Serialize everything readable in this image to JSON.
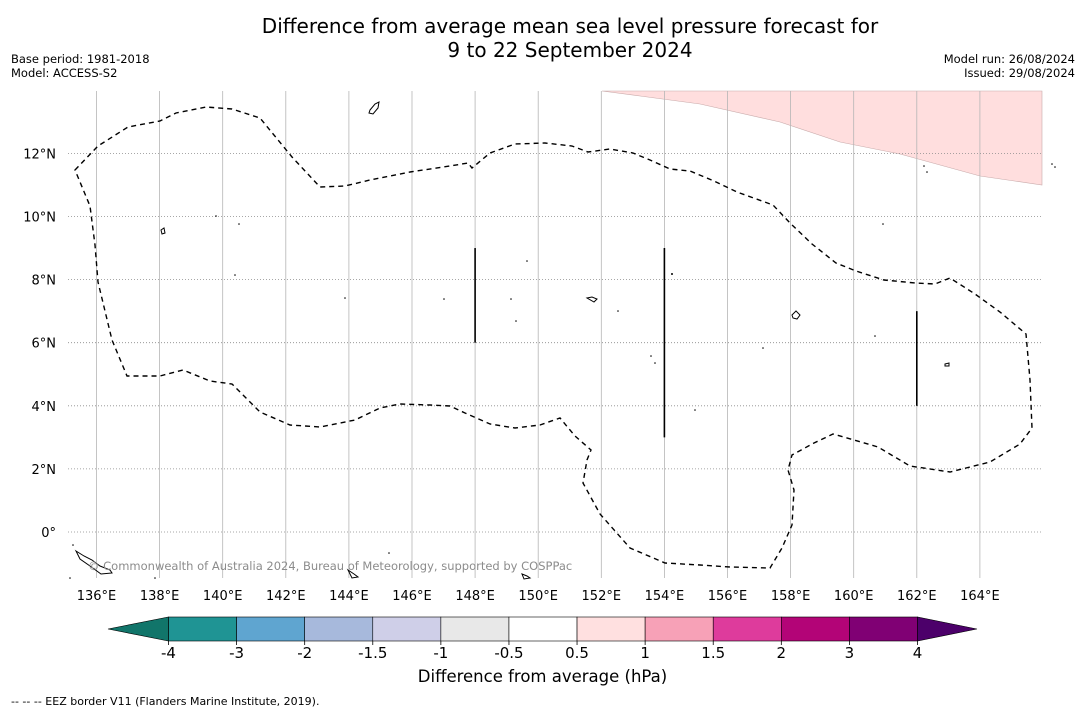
{
  "title_line1": "Difference from average mean sea level pressure forecast for",
  "title_line2": "9 to 22 September 2024",
  "meta_left": [
    "Base period: 1981-2018",
    "Model: ACCESS-S2"
  ],
  "meta_right": [
    "Model run: 26/08/2024",
    "Issued: 29/08/2024"
  ],
  "lon_ticks": [
    "136°E",
    "138°E",
    "140°E",
    "142°E",
    "144°E",
    "146°E",
    "148°E",
    "150°E",
    "152°E",
    "154°E",
    "156°E",
    "158°E",
    "160°E",
    "162°E",
    "164°E"
  ],
  "lat_ticks": [
    "12°N",
    "10°N",
    "8°N",
    "6°N",
    "4°N",
    "2°N",
    "0°"
  ],
  "copyright": "© Commonwealth of Australia 2024, Bureau of Meteorology, supported by COSPPac",
  "colorbar": {
    "tick_labels": [
      "-4",
      "-3",
      "-2",
      "-1.5",
      "-1",
      "-0.5",
      "0.5",
      "1",
      "1.5",
      "2",
      "3",
      "4"
    ],
    "colors": [
      "#1f9494",
      "#5fa5d0",
      "#a7b9dc",
      "#cfcfe8",
      "#e8e8e8",
      "#ffffff",
      "#ffe0e0",
      "#f7a1b7",
      "#de3b9c",
      "#b30477",
      "#800074"
    ],
    "low_extend_color": "#11756a",
    "high_extend_color": "#4c006a",
    "label": "Difference from average (hPa)"
  },
  "footnote": "-- -- -- EEZ border V11 (Flanders Marine Institute, 2019).",
  "map": {
    "anomaly_color": "#ffdede",
    "dividers": [
      {
        "lon": 148,
        "lat_from": 6,
        "lat_to": 9
      },
      {
        "lon": 154,
        "lat_from": 3,
        "lat_to": 9
      },
      {
        "lon": 162,
        "lat_from": 4,
        "lat_to": 7
      }
    ]
  }
}
